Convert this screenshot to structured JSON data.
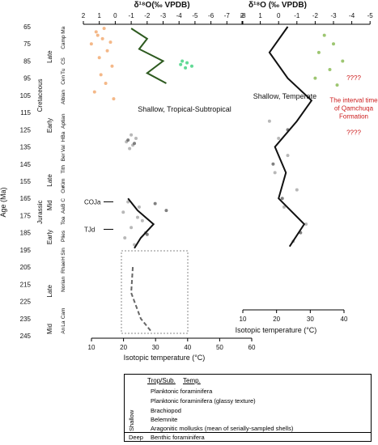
{
  "chart_data": [
    {
      "type": "scatter",
      "title": "δ¹⁸O(‰ VPDB)",
      "xlabel": "Isotopic temperature (°C)",
      "ylabel": "Age (Ma)",
      "ylim": [
        65,
        245
      ],
      "top_ticks": [
        "2",
        "1",
        "0",
        "-1",
        "-2",
        "-3",
        "-4",
        "-5",
        "-6",
        "-7",
        "-8"
      ],
      "bottom_ticks": [
        "10",
        "20",
        "30",
        "40",
        "50",
        "60"
      ],
      "annotation": "Shallow, Tropical-Subtropical",
      "markers": [
        {
          "label": "COJa",
          "age": 167
        },
        {
          "label": "TJd",
          "age": 183
        }
      ],
      "series": [
        {
          "name": "Planktonic foraminifera",
          "color": "#f0a060",
          "points": [
            [
              1.2,
              68
            ],
            [
              0.8,
              72
            ],
            [
              1.5,
              75
            ],
            [
              0.5,
              79
            ],
            [
              1.0,
              83
            ],
            [
              0.2,
              88
            ],
            [
              0.9,
              93
            ],
            [
              0.6,
              98
            ],
            [
              1.3,
              103
            ],
            [
              0.1,
              107
            ],
            [
              0.7,
              66
            ],
            [
              1.1,
              70
            ],
            [
              0.3,
              74
            ]
          ]
        },
        {
          "name": "Planktonic foraminifera (glassy texture)",
          "color": "#2ecc71",
          "points": [
            [
              -4.2,
              85
            ],
            [
              -4.5,
              86
            ],
            [
              -4.1,
              87
            ],
            [
              -4.8,
              88
            ],
            [
              -4.4,
              89
            ]
          ]
        },
        {
          "name": "Brachiopod",
          "color": "#a0a0a0",
          "points": [
            [
              -1.0,
              128
            ],
            [
              -1.3,
              130
            ],
            [
              -0.7,
              132
            ],
            [
              -1.1,
              134
            ],
            [
              -0.9,
              136
            ],
            [
              -0.8,
              167
            ],
            [
              -1.5,
              170
            ],
            [
              -0.5,
              173
            ],
            [
              -1.7,
              178
            ],
            [
              -1.0,
              182
            ],
            [
              -1.9,
              185
            ],
            [
              -0.6,
              188
            ],
            [
              -1.2,
              192
            ],
            [
              -1.4,
              176
            ]
          ]
        },
        {
          "name": "Belemnite",
          "color": "#555555",
          "points": [
            [
              -0.8,
              131
            ],
            [
              -1.2,
              133
            ],
            [
              -2.5,
              168
            ],
            [
              -3.2,
              172
            ],
            [
              -2.0,
              186
            ]
          ]
        }
      ],
      "trend_lines": [
        {
          "name": "Cretaceous shallow mean",
          "color": "#2d5a1f",
          "points": [
            [
              -1.0,
              66
            ],
            [
              -2.0,
              72
            ],
            [
              -1.5,
              78
            ],
            [
              -3.0,
              85
            ],
            [
              -2.0,
              92
            ],
            [
              -3.2,
              98
            ]
          ]
        },
        {
          "name": "Jurassic shallow mean",
          "color": "#111111",
          "points": [
            [
              -0.8,
              165
            ],
            [
              -1.4,
              172
            ],
            [
              -2.4,
              180
            ],
            [
              -1.6,
              188
            ],
            [
              -1.2,
              194
            ]
          ]
        }
      ]
    },
    {
      "type": "scatter",
      "title": "δ¹⁸O (‰ VPDB)",
      "xlabel": "Isotopic temperature (°C)",
      "ylim": [
        65,
        245
      ],
      "top_ticks": [
        "2",
        "1",
        "0",
        "-1",
        "-2",
        "-3",
        "-4",
        "-5"
      ],
      "bottom_ticks": [
        "10",
        "20",
        "30",
        "40"
      ],
      "annotation": "Shallow, Temperate",
      "series": [
        {
          "name": "Planktonic foraminifera",
          "color": "#7cb342",
          "points": [
            [
              -2.5,
              70
            ],
            [
              -3.0,
              75
            ],
            [
              -2.2,
              80
            ],
            [
              -3.5,
              85
            ],
            [
              -2.8,
              90
            ],
            [
              -2.0,
              95
            ],
            [
              -3.2,
              99
            ]
          ]
        },
        {
          "name": "Brachiopod",
          "color": "#a0a0a0",
          "points": [
            [
              0.5,
              120
            ],
            [
              0.0,
              130
            ],
            [
              -0.5,
              140
            ],
            [
              0.2,
              150
            ],
            [
              -1.0,
              160
            ],
            [
              -0.3,
              170
            ],
            [
              -1.5,
              180
            ],
            [
              -0.8,
              190
            ]
          ]
        },
        {
          "name": "Belemnite",
          "color": "#555555",
          "points": [
            [
              -0.5,
              125
            ],
            [
              0.3,
              145
            ],
            [
              -0.2,
              165
            ],
            [
              -1.2,
              185
            ]
          ]
        }
      ],
      "trend_lines": [
        {
          "name": "Shallow temperate mean",
          "color": "#111111",
          "points": [
            [
              -0.5,
              65
            ],
            [
              0.5,
              80
            ],
            [
              -0.5,
              95
            ],
            [
              -1.8,
              108
            ],
            [
              -1.0,
              120
            ],
            [
              0.2,
              135
            ],
            [
              -0.4,
              150
            ],
            [
              0.0,
              165
            ],
            [
              -1.4,
              180
            ],
            [
              -0.6,
              193
            ]
          ]
        }
      ],
      "side_notes": [
        {
          "text": "????",
          "age": 96
        },
        {
          "text": "The interval time of Qamchuqa Formation",
          "age": 109
        },
        {
          "text": "????",
          "age": 128
        }
      ]
    }
  ],
  "age_ticks": [
    "65",
    "75",
    "85",
    "95",
    "105",
    "115",
    "125",
    "135",
    "145",
    "155",
    "165",
    "175",
    "185",
    "195",
    "205",
    "215",
    "225",
    "235",
    "245"
  ],
  "periods": [
    {
      "name": "Cretaceous",
      "epochs": [
        {
          "name": "Late"
        },
        {
          "name": "Early"
        }
      ]
    },
    {
      "name": "Jurassic",
      "epochs": [
        {
          "name": "Late"
        },
        {
          "name": "Mid"
        },
        {
          "name": "Early"
        }
      ]
    },
    {
      "name": "",
      "epochs": [
        {
          "name": "Late"
        },
        {
          "name": "Mid"
        }
      ]
    }
  ],
  "stages": [
    "Ma",
    "Camp",
    "S",
    "C",
    "Tu",
    "Cen",
    "Albian",
    "Aptian",
    "Ba",
    "H",
    "Val",
    "Ber",
    "Tith",
    "Kim",
    "Ox",
    "C",
    "B",
    "Aa",
    "Toa",
    "Plies",
    "Sin",
    "H",
    "Rhae",
    "Norian",
    "Cam",
    "La",
    "An"
  ],
  "legend": {
    "col1": "Trop/Sub.",
    "col2": "Temp.",
    "rows": [
      "Planktonic foraminifera",
      "Planktonic foraminifera (glassy texture)",
      "Brachiopod",
      "Belemnite",
      "Aragonitic mollusks (mean of serially-sampled shells)"
    ],
    "shallow": "Shallow",
    "deep": "Deep",
    "deep_row": "Benthic foraminifera"
  }
}
